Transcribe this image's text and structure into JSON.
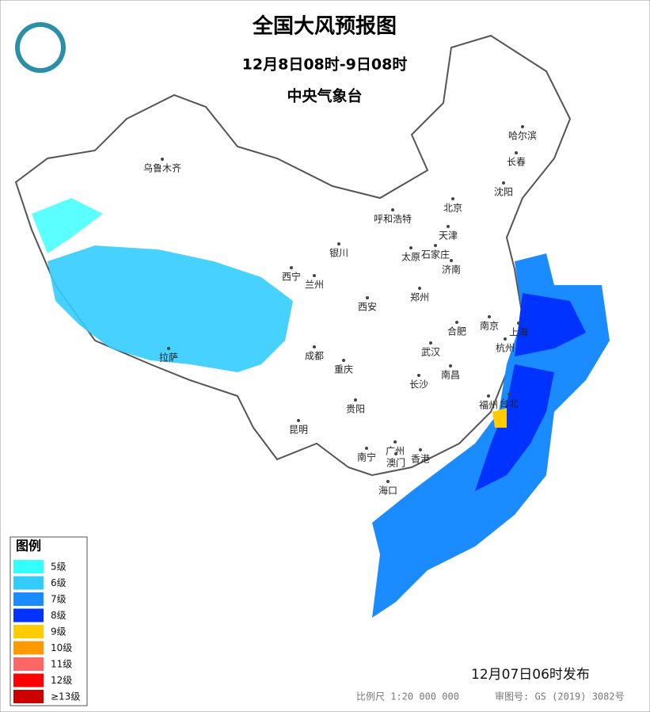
{
  "header": {
    "title": "全国大风预报图",
    "time": "12月8日08时-9日08时",
    "issuer": "中央气象台"
  },
  "legend": {
    "title": "图例",
    "items": [
      {
        "label": "5级",
        "color": "#33ffff"
      },
      {
        "label": "6级",
        "color": "#33ccff"
      },
      {
        "label": "7级",
        "color": "#1a8cff"
      },
      {
        "label": "8级",
        "color": "#0033ff"
      },
      {
        "label": "9级",
        "color": "#ffcc00"
      },
      {
        "label": "10级",
        "color": "#ff9900"
      },
      {
        "label": "11级",
        "color": "#ff6666"
      },
      {
        "label": "12级",
        "color": "#ff0000"
      },
      {
        "label": "≥13级",
        "color": "#cc0000"
      }
    ]
  },
  "cities": [
    "乌鲁木齐",
    "哈尔滨",
    "长春",
    "沈阳",
    "北京",
    "天津",
    "呼和浩特",
    "银川",
    "太原",
    "石家庄",
    "济南",
    "西宁",
    "兰州",
    "郑州",
    "西安",
    "南京",
    "上海",
    "合肥",
    "杭州",
    "武汉",
    "成都",
    "重庆",
    "长沙",
    "南昌",
    "拉萨",
    "贵阳",
    "福州",
    "台北",
    "昆明",
    "南宁",
    "广州",
    "澳门",
    "香港",
    "海口"
  ],
  "footer": {
    "issued": "12月07日06时发布",
    "scale": "比例尺 1:20 000 000",
    "review": "审图号: GS (2019) 3082号"
  }
}
